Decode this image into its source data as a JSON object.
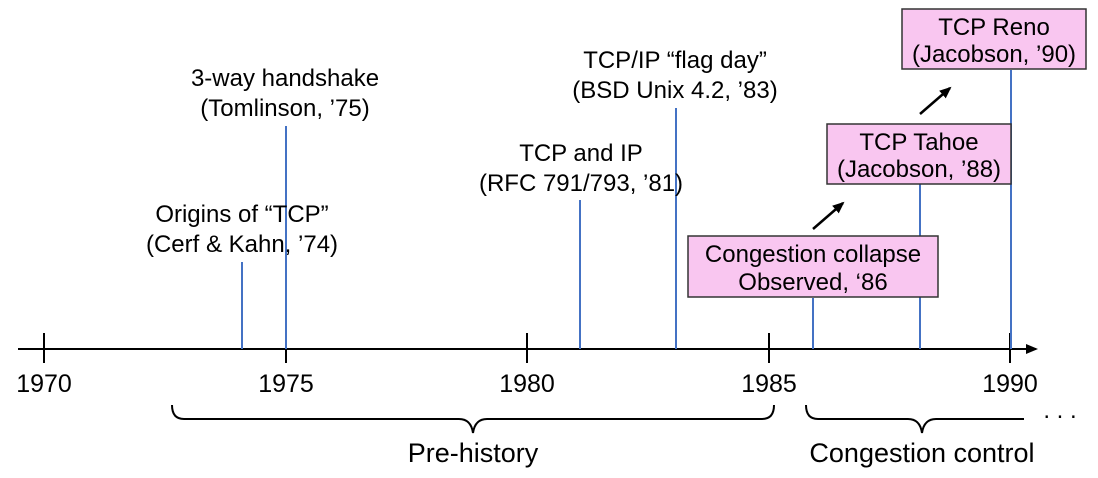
{
  "colors": {
    "timeline": "#000000",
    "marker": "#4472c4",
    "highlight_fill": "#f9c6f0",
    "highlight_border": "#333333"
  },
  "years": [
    "1970",
    "1975",
    "1980",
    "1985",
    "1990"
  ],
  "events": [
    {
      "line1": "Origins of “TCP”",
      "line2": "(Cerf & Kahn, ’74)",
      "year": 1974.1,
      "highlighted": false
    },
    {
      "line1": "3-way handshake",
      "line2": "(Tomlinson, ’75)",
      "year": 1975,
      "highlighted": false
    },
    {
      "line1": "TCP and IP",
      "line2": "(RFC 791/793, ’81)",
      "year": 1981.1,
      "highlighted": false
    },
    {
      "line1": "TCP/IP “flag day”",
      "line2": "(BSD Unix 4.2, ’83)",
      "year": 1983,
      "highlighted": false
    },
    {
      "line1": "Congestion collapse",
      "line2": "Observed, ‘86",
      "year": 1985.9,
      "highlighted": true
    },
    {
      "line1": "TCP Tahoe",
      "line2": "(Jacobson, ’88)",
      "year": 1988.1,
      "highlighted": true
    },
    {
      "line1": "TCP Reno",
      "line2": "(Jacobson, ’90)",
      "year": 1990,
      "highlighted": true
    }
  ],
  "eras": {
    "prehistory": "Pre-history",
    "congestion": "Congestion control"
  },
  "ellipsis": ". . ."
}
